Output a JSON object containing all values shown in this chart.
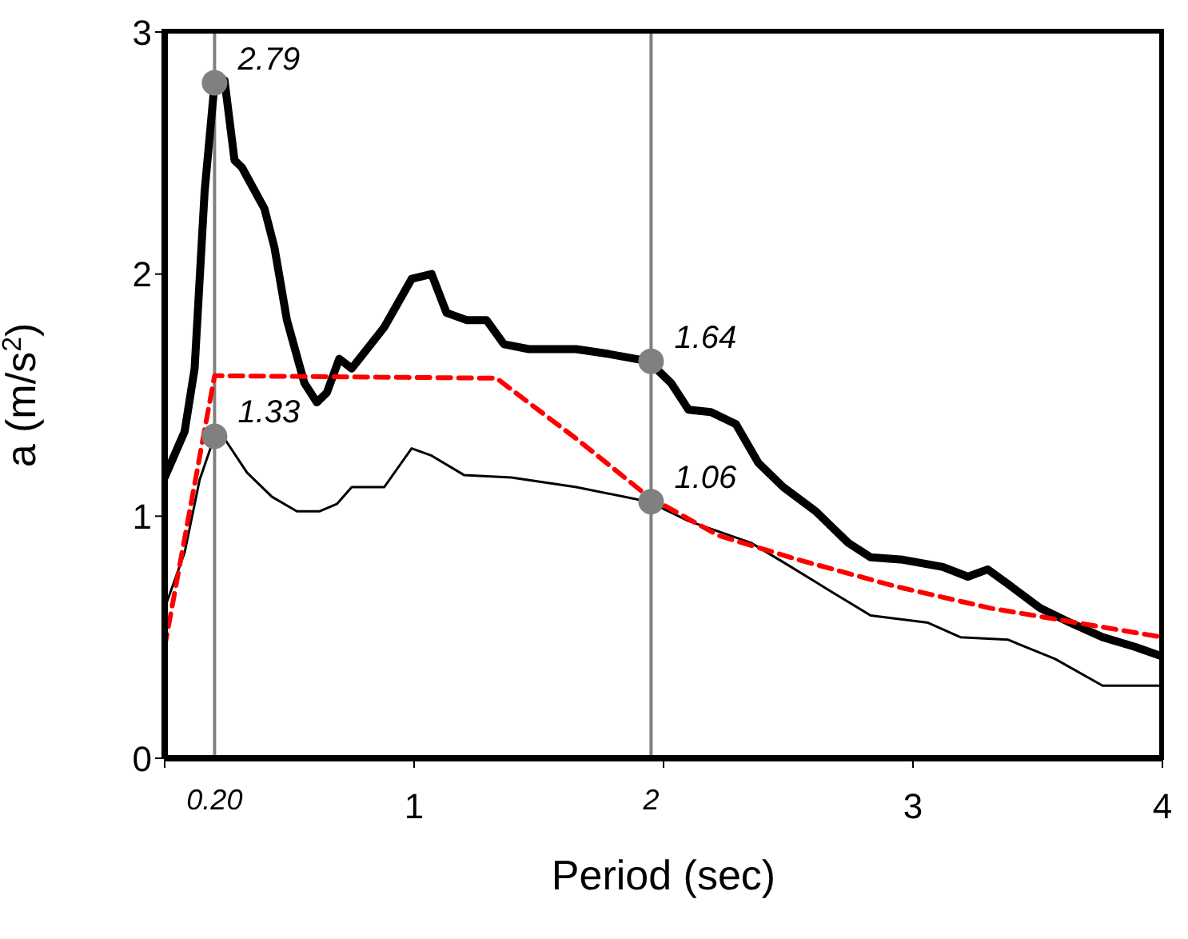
{
  "chart_data": {
    "type": "line",
    "xlabel": "Period (sec)",
    "ylabel": "a (m/s$^{2}$)",
    "xlim": [
      0,
      4
    ],
    "xticks": [
      {
        "value": 0,
        "label": null
      },
      1,
      {
        "value": 2,
        "label": null
      },
      3,
      4
    ],
    "ylim": [
      0,
      3
    ],
    "yticks": [
      0,
      1,
      2,
      3
    ],
    "grid": false,
    "legend": false,
    "marker": "none",
    "series": [
      {
        "color": "#000000",
        "line_style": "solid",
        "x": [
          0,
          0.08,
          0.12,
          0.16,
          0.2,
          0.24,
          0.28,
          0.31,
          0.4,
          0.44,
          0.49,
          0.56,
          0.61,
          0.65,
          0.7,
          0.75,
          0.88,
          0.99,
          1.07,
          1.13,
          1.21,
          1.29,
          1.36,
          1.46,
          1.65,
          1.78,
          1.94,
          2.03,
          2.1,
          2.19,
          2.29,
          2.38,
          2.48,
          2.61,
          2.74,
          2.83,
          2.96,
          3.12,
          3.22,
          3.3,
          3.38,
          3.51,
          3.63,
          3.76,
          3.89,
          4
        ],
        "values": [
          1.16,
          1.35,
          1.61,
          2.34,
          2.79,
          2.8,
          2.47,
          2.44,
          2.27,
          2.11,
          1.81,
          1.55,
          1.47,
          1.51,
          1.65,
          1.61,
          1.78,
          1.98,
          2.0,
          1.84,
          1.81,
          1.81,
          1.71,
          1.69,
          1.69,
          1.67,
          1.64,
          1.55,
          1.44,
          1.43,
          1.38,
          1.22,
          1.12,
          1.02,
          0.89,
          0.83,
          0.82,
          0.79,
          0.75,
          0.78,
          0.72,
          0.62,
          0.56,
          0.5,
          0.46,
          0.42
        ]
      },
      {
        "color": "#000000",
        "line_style": "solid",
        "x": [
          0,
          0.08,
          0.14,
          0.2,
          0.24,
          0.33,
          0.43,
          0.53,
          0.62,
          0.69,
          0.75,
          0.88,
          0.99,
          1.07,
          1.2,
          1.39,
          1.65,
          1.94,
          2.1,
          2.35,
          2.48,
          2.67,
          2.83,
          3.06,
          3.19,
          3.38,
          3.57,
          3.76,
          4
        ],
        "values": [
          0.62,
          0.85,
          1.15,
          1.33,
          1.32,
          1.18,
          1.08,
          1.02,
          1.02,
          1.05,
          1.12,
          1.12,
          1.28,
          1.25,
          1.17,
          1.16,
          1.12,
          1.06,
          0.98,
          0.89,
          0.81,
          0.69,
          0.59,
          0.56,
          0.5,
          0.49,
          0.41,
          0.3,
          0.3
        ]
      },
      {
        "color": "#ff0000",
        "line_style": "dashed",
        "x": [
          0,
          0.2,
          1.33,
          1.65,
          1.94,
          2.22,
          2.54,
          2.93,
          3.31,
          4
        ],
        "values": [
          0.46,
          1.58,
          1.57,
          1.32,
          1.08,
          0.92,
          0.82,
          0.71,
          0.62,
          0.5
        ]
      },
      {
        "type": "scatter",
        "color": "#808080",
        "marker": "circle",
        "x": [
          0.2,
          0.2,
          1.95,
          1.95
        ],
        "values": [
          2.79,
          1.33,
          1.64,
          1.06
        ],
        "value_labels": [
          "2.79",
          "1.33",
          "1.64",
          "1.06"
        ]
      }
    ],
    "ref_lines": [
      {
        "axis": "x",
        "value": 0.2,
        "label": "0.20",
        "color": "#808080"
      },
      {
        "axis": "x",
        "value": 1.95,
        "label": "2",
        "color": "#808080"
      }
    ]
  }
}
